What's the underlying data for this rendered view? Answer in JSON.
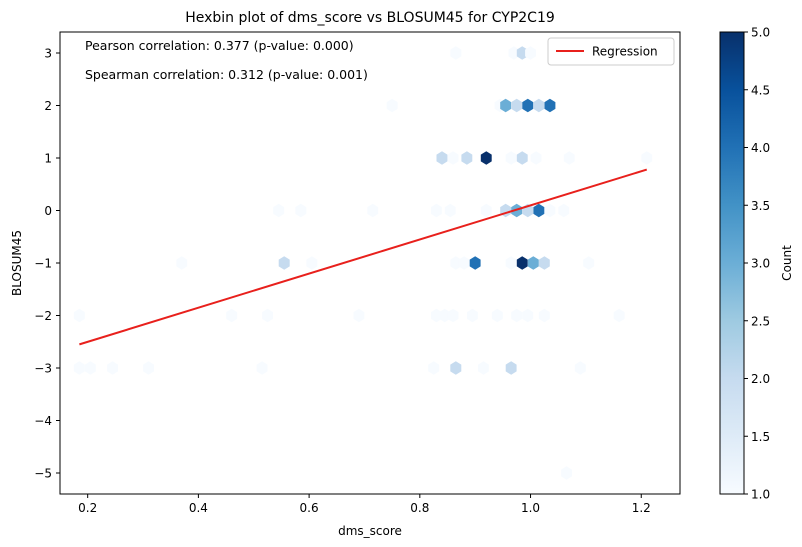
{
  "chart_data": {
    "type": "hexbin",
    "title": "Hexbin plot of dms_score vs BLOSUM45 for CYP2C19",
    "xlabel": "dms_score",
    "ylabel": "BLOSUM45",
    "xlim": [
      0.15,
      1.27
    ],
    "ylim": [
      -5.4,
      3.4
    ],
    "xticks": [
      "0.2",
      "0.4",
      "0.6",
      "0.8",
      "1.0",
      "1.2"
    ],
    "yticks": [
      "3",
      "2",
      "1",
      "0",
      "−1",
      "−2",
      "−3",
      "−4",
      "−5"
    ],
    "annotations": [
      "Pearson correlation: 0.377 (p-value: 0.000)",
      "Spearman correlation: 0.312 (p-value: 0.001)"
    ],
    "legend": {
      "placement": "upper-right",
      "entries": [
        "Regression"
      ]
    },
    "regression": {
      "color": "#e8201c",
      "x": [
        0.185,
        1.21
      ],
      "y": [
        -2.55,
        0.78
      ]
    },
    "colorbar": {
      "label": "Count",
      "min": 1.0,
      "max": 5.0,
      "ticks": [
        "1.0",
        "1.5",
        "2.0",
        "2.5",
        "3.0",
        "3.5",
        "4.0",
        "4.5",
        "5.0"
      ],
      "colormap": "Blues"
    },
    "bins": [
      {
        "x": 0.865,
        "y": 3,
        "count": 1
      },
      {
        "x": 0.97,
        "y": 3,
        "count": 1
      },
      {
        "x": 0.985,
        "y": 3,
        "count": 2
      },
      {
        "x": 1.0,
        "y": 3,
        "count": 1
      },
      {
        "x": 0.75,
        "y": 2,
        "count": 1
      },
      {
        "x": 0.945,
        "y": 2,
        "count": 1
      },
      {
        "x": 0.955,
        "y": 2,
        "count": 3
      },
      {
        "x": 0.975,
        "y": 2,
        "count": 2
      },
      {
        "x": 0.995,
        "y": 2,
        "count": 4
      },
      {
        "x": 1.015,
        "y": 2,
        "count": 2
      },
      {
        "x": 1.035,
        "y": 2,
        "count": 4
      },
      {
        "x": 0.84,
        "y": 1,
        "count": 2
      },
      {
        "x": 0.86,
        "y": 1,
        "count": 1
      },
      {
        "x": 0.885,
        "y": 1,
        "count": 2
      },
      {
        "x": 0.92,
        "y": 1,
        "count": 5
      },
      {
        "x": 0.965,
        "y": 1,
        "count": 1
      },
      {
        "x": 0.985,
        "y": 1,
        "count": 2
      },
      {
        "x": 1.01,
        "y": 1,
        "count": 1
      },
      {
        "x": 1.07,
        "y": 1,
        "count": 1
      },
      {
        "x": 1.21,
        "y": 1,
        "count": 1
      },
      {
        "x": 0.545,
        "y": 0,
        "count": 1
      },
      {
        "x": 0.585,
        "y": 0,
        "count": 1
      },
      {
        "x": 0.715,
        "y": 0,
        "count": 1
      },
      {
        "x": 0.83,
        "y": 0,
        "count": 1
      },
      {
        "x": 0.855,
        "y": 0,
        "count": 1
      },
      {
        "x": 0.92,
        "y": 0,
        "count": 1
      },
      {
        "x": 0.955,
        "y": 0,
        "count": 2
      },
      {
        "x": 0.975,
        "y": 0,
        "count": 3
      },
      {
        "x": 0.995,
        "y": 0,
        "count": 2
      },
      {
        "x": 1.015,
        "y": 0,
        "count": 4
      },
      {
        "x": 1.035,
        "y": 0,
        "count": 1
      },
      {
        "x": 1.06,
        "y": 0,
        "count": 1
      },
      {
        "x": 0.37,
        "y": -1,
        "count": 1
      },
      {
        "x": 0.555,
        "y": -1,
        "count": 2
      },
      {
        "x": 0.605,
        "y": -1,
        "count": 1
      },
      {
        "x": 0.865,
        "y": -1,
        "count": 1
      },
      {
        "x": 0.88,
        "y": -1,
        "count": 1
      },
      {
        "x": 0.9,
        "y": -1,
        "count": 4
      },
      {
        "x": 0.965,
        "y": -1,
        "count": 1
      },
      {
        "x": 0.985,
        "y": -1,
        "count": 5
      },
      {
        "x": 1.005,
        "y": -1,
        "count": 3
      },
      {
        "x": 1.025,
        "y": -1,
        "count": 2
      },
      {
        "x": 1.105,
        "y": -1,
        "count": 1
      },
      {
        "x": 0.185,
        "y": -2,
        "count": 1
      },
      {
        "x": 0.46,
        "y": -2,
        "count": 1
      },
      {
        "x": 0.525,
        "y": -2,
        "count": 1
      },
      {
        "x": 0.69,
        "y": -2,
        "count": 1
      },
      {
        "x": 0.83,
        "y": -2,
        "count": 1
      },
      {
        "x": 0.845,
        "y": -2,
        "count": 1
      },
      {
        "x": 0.86,
        "y": -2,
        "count": 1
      },
      {
        "x": 0.895,
        "y": -2,
        "count": 1
      },
      {
        "x": 0.94,
        "y": -2,
        "count": 1
      },
      {
        "x": 0.975,
        "y": -2,
        "count": 1
      },
      {
        "x": 0.995,
        "y": -2,
        "count": 1
      },
      {
        "x": 1.025,
        "y": -2,
        "count": 1
      },
      {
        "x": 1.16,
        "y": -2,
        "count": 1
      },
      {
        "x": 0.185,
        "y": -3,
        "count": 1
      },
      {
        "x": 0.205,
        "y": -3,
        "count": 1
      },
      {
        "x": 0.245,
        "y": -3,
        "count": 1
      },
      {
        "x": 0.31,
        "y": -3,
        "count": 1
      },
      {
        "x": 0.515,
        "y": -3,
        "count": 1
      },
      {
        "x": 0.825,
        "y": -3,
        "count": 1
      },
      {
        "x": 0.865,
        "y": -3,
        "count": 2
      },
      {
        "x": 0.915,
        "y": -3,
        "count": 1
      },
      {
        "x": 0.965,
        "y": -3,
        "count": 2
      },
      {
        "x": 1.09,
        "y": -3,
        "count": 1
      },
      {
        "x": 1.065,
        "y": -5,
        "count": 1
      }
    ]
  }
}
